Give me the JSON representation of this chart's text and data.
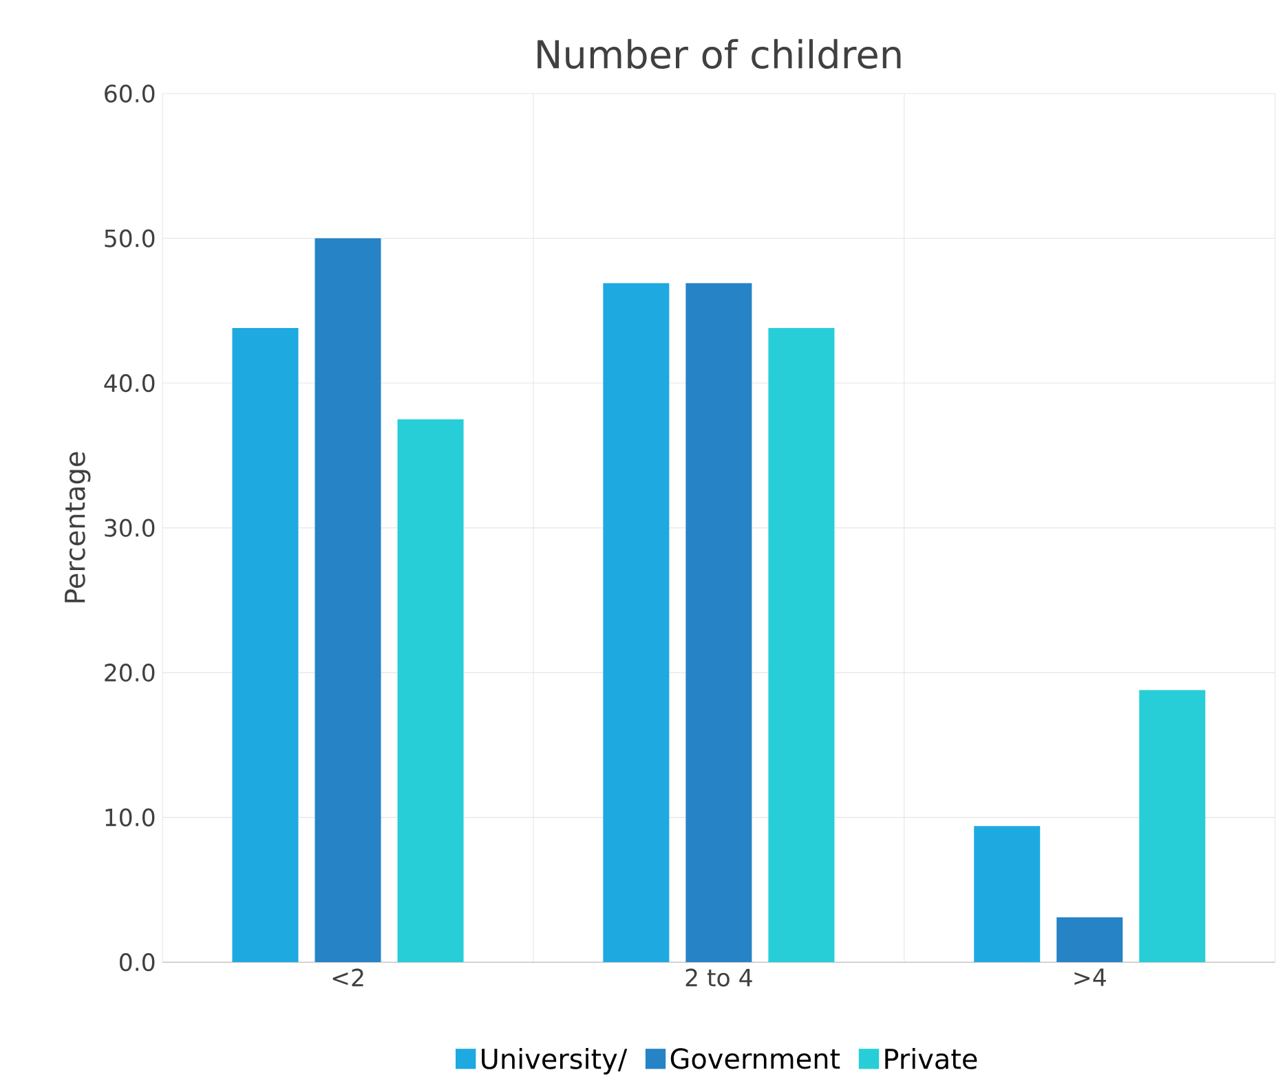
{
  "chart_data": {
    "type": "bar",
    "title": "Number of children",
    "ylabel": "Percentage",
    "categories": [
      "<2",
      "2 to 4",
      ">4"
    ],
    "series": [
      {
        "name": "University/",
        "color": "#1fa9e1",
        "values": [
          43.8,
          46.9,
          9.4
        ]
      },
      {
        "name": "Government",
        "color": "#2683c6",
        "values": [
          50.0,
          46.9,
          3.1
        ]
      },
      {
        "name": "Private",
        "color": "#27ced7",
        "values": [
          37.5,
          43.8,
          18.8
        ]
      }
    ],
    "ylim": [
      0,
      60
    ],
    "yticks": [
      {
        "value": 0,
        "label": "0.0"
      },
      {
        "value": 10,
        "label": "10.0"
      },
      {
        "value": 20,
        "label": "20.0"
      },
      {
        "value": 30,
        "label": "30.0"
      },
      {
        "value": 40,
        "label": "40.0"
      },
      {
        "value": 50,
        "label": "50.0"
      },
      {
        "value": 60,
        "label": "60.0"
      }
    ],
    "grid": true,
    "legend": "bottom"
  }
}
